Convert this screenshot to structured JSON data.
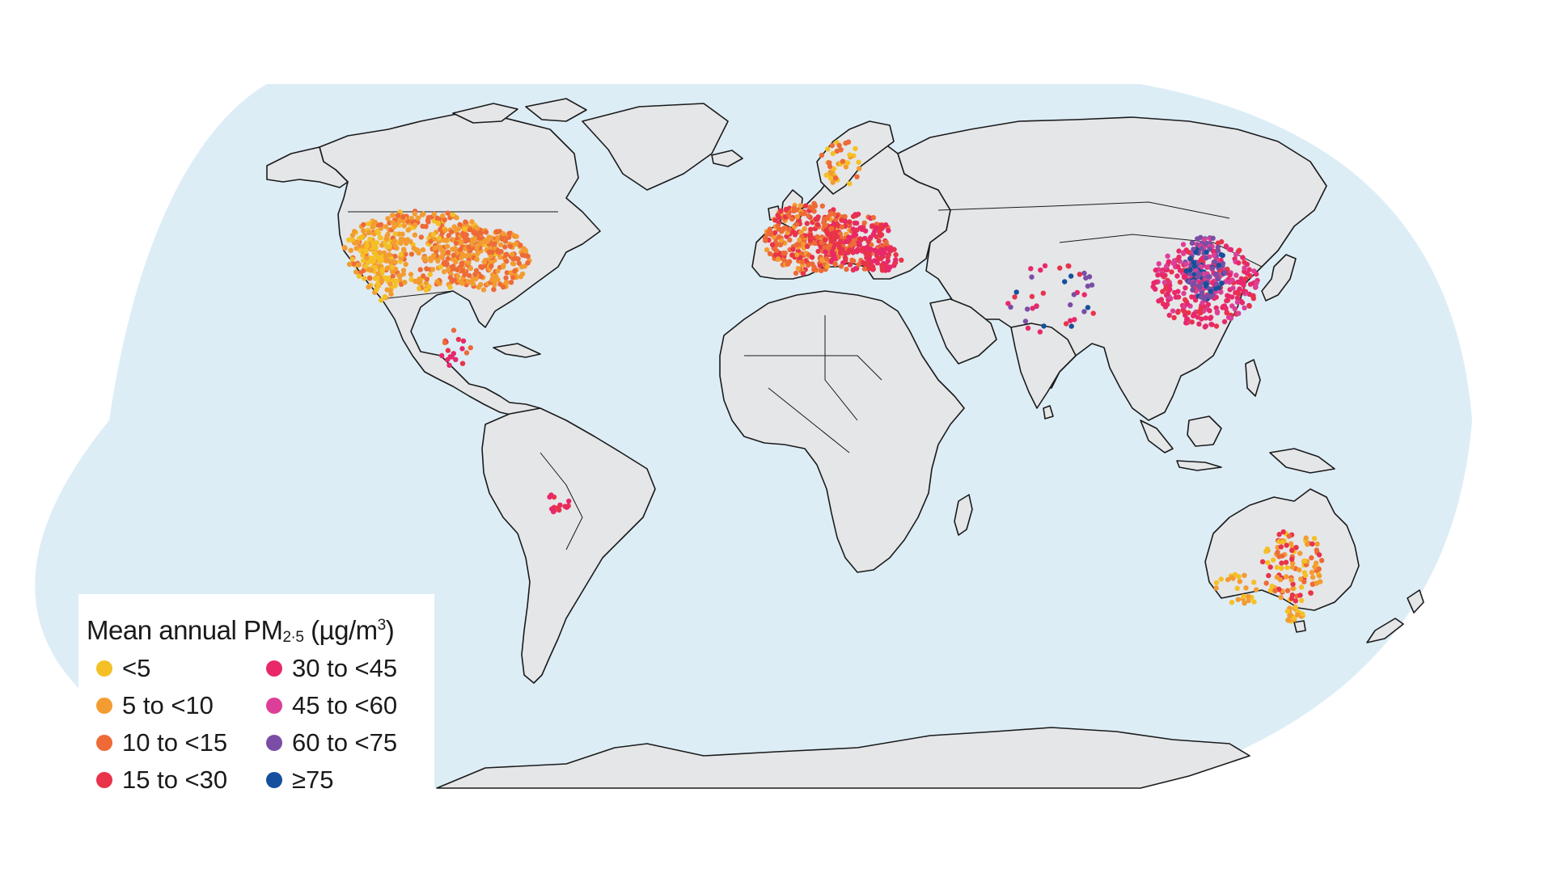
{
  "legend": {
    "title_prefix": "Mean annual PM",
    "title_sub": "2·5",
    "title_unit_open": " (µg/m",
    "title_sup": "3",
    "title_unit_close": ")",
    "items": [
      {
        "label": "<5",
        "color": "#f5c026"
      },
      {
        "label": "5 to <10",
        "color": "#f39c31"
      },
      {
        "label": "10 to <15",
        "color": "#ee6a36"
      },
      {
        "label": "15 to <30",
        "color": "#e8334a"
      },
      {
        "label": "30 to <45",
        "color": "#e8286a"
      },
      {
        "label": "45 to <60",
        "color": "#dc3f98"
      },
      {
        "label": "60 to <75",
        "color": "#7a4ea5"
      },
      {
        "label": "≥75",
        "color": "#15509c"
      }
    ]
  },
  "map": {
    "ocean_color": "#dcedf6",
    "land_color": "#e5e6e8",
    "border_color": "#1a1a1a",
    "projection": "Robinson"
  }
}
